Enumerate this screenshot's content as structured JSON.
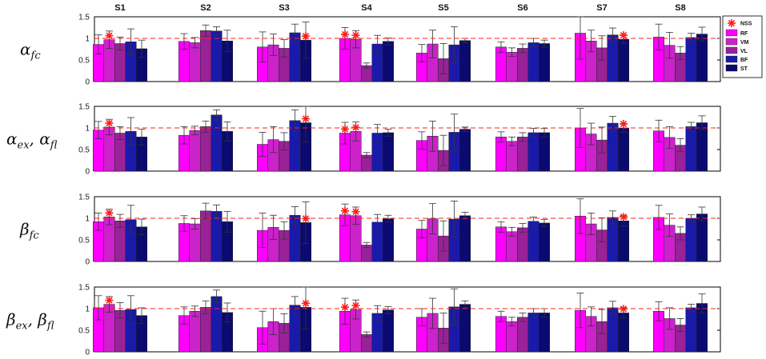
{
  "chart_data": {
    "type": "bar",
    "subjects": [
      "S1",
      "S2",
      "S3",
      "S4",
      "S5",
      "S6",
      "S7",
      "S8"
    ],
    "muscles": [
      "RF",
      "VM",
      "VL",
      "BF",
      "ST"
    ],
    "muscle_colors": [
      "#ff00ff",
      "#cc22cc",
      "#992299",
      "#1a1aaa",
      "#0a0a70"
    ],
    "legend": {
      "marker_label": "NSS",
      "placement": "top-right"
    },
    "reference_line": 1,
    "ylim": [
      0,
      1.5
    ],
    "yticks": [
      "0",
      "0.5",
      "1",
      "1.5"
    ],
    "rows": [
      {
        "label": "α_fc",
        "label_main": "α",
        "label_sub": "fc",
        "values": [
          [
            0.86,
            0.97,
            0.88,
            0.92,
            0.76
          ],
          [
            0.93,
            0.9,
            1.18,
            1.17,
            0.94
          ],
          [
            0.8,
            0.85,
            0.77,
            1.13,
            0.96
          ],
          [
            1.0,
            0.98,
            0.37,
            0.87,
            0.93
          ],
          [
            0.66,
            0.87,
            0.53,
            0.85,
            0.95
          ],
          [
            0.8,
            0.68,
            0.77,
            0.9,
            0.88
          ],
          [
            1.12,
            0.94,
            0.78,
            1.08,
            0.98
          ],
          [
            1.03,
            0.84,
            0.66,
            1.02,
            1.1
          ]
        ],
        "errors": [
          [
            0.22,
            0.2,
            0.15,
            0.3,
            0.2
          ],
          [
            0.18,
            0.12,
            0.13,
            0.1,
            0.25
          ],
          [
            0.35,
            0.25,
            0.2,
            0.2,
            0.42
          ],
          [
            0.25,
            0.2,
            0.06,
            0.2,
            0.08
          ],
          [
            0.2,
            0.32,
            0.35,
            0.42,
            0.05
          ],
          [
            0.12,
            0.1,
            0.1,
            0.1,
            0.08
          ],
          [
            0.6,
            0.25,
            0.28,
            0.16,
            0.1
          ],
          [
            0.3,
            0.3,
            0.15,
            0.1,
            0.16
          ]
        ],
        "significant": [
          [
            false,
            true,
            false,
            false,
            false
          ],
          [
            false,
            false,
            false,
            false,
            false
          ],
          [
            false,
            false,
            false,
            false,
            true
          ],
          [
            true,
            true,
            false,
            false,
            false
          ],
          [
            false,
            false,
            false,
            false,
            false
          ],
          [
            false,
            false,
            false,
            false,
            false
          ],
          [
            false,
            false,
            false,
            false,
            true
          ],
          [
            false,
            false,
            false,
            false,
            false
          ]
        ]
      },
      {
        "label": "α_ex, α_fl",
        "label_main": "α",
        "label_sub": "ex",
        "label_main2": "α",
        "label_sub2": "fl",
        "values": [
          [
            0.95,
            1.02,
            0.88,
            0.92,
            0.79
          ],
          [
            0.83,
            0.94,
            1.03,
            1.3,
            0.92
          ],
          [
            0.62,
            0.73,
            0.69,
            1.17,
            1.12
          ],
          [
            0.88,
            0.92,
            0.37,
            0.88,
            0.89
          ],
          [
            0.71,
            0.81,
            0.48,
            0.9,
            0.97
          ],
          [
            0.79,
            0.69,
            0.79,
            0.89,
            0.89
          ],
          [
            1.0,
            0.86,
            0.72,
            1.11,
            1.0
          ],
          [
            0.93,
            0.78,
            0.6,
            1.03,
            1.12
          ]
        ],
        "errors": [
          [
            0.2,
            0.18,
            0.15,
            0.32,
            0.18
          ],
          [
            0.2,
            0.1,
            0.13,
            0.12,
            0.22
          ],
          [
            0.28,
            0.3,
            0.2,
            0.25,
            0.45
          ],
          [
            0.25,
            0.22,
            0.06,
            0.2,
            0.08
          ],
          [
            0.2,
            0.35,
            0.35,
            0.42,
            0.05
          ],
          [
            0.12,
            0.1,
            0.1,
            0.1,
            0.1
          ],
          [
            0.45,
            0.25,
            0.3,
            0.16,
            0.1
          ],
          [
            0.25,
            0.25,
            0.15,
            0.1,
            0.16
          ]
        ],
        "significant": [
          [
            false,
            true,
            false,
            false,
            false
          ],
          [
            false,
            false,
            false,
            false,
            false
          ],
          [
            false,
            false,
            false,
            false,
            true
          ],
          [
            true,
            true,
            false,
            false,
            false
          ],
          [
            false,
            false,
            false,
            false,
            false
          ],
          [
            false,
            false,
            false,
            false,
            false
          ],
          [
            false,
            false,
            false,
            false,
            true
          ],
          [
            false,
            false,
            false,
            false,
            false
          ]
        ]
      },
      {
        "label": "β_fc",
        "label_main": "β",
        "label_sub": "fc",
        "values": [
          [
            0.92,
            1.03,
            0.94,
            0.97,
            0.8
          ],
          [
            0.88,
            0.87,
            1.17,
            1.16,
            0.92
          ],
          [
            0.72,
            0.79,
            0.72,
            1.07,
            0.9
          ],
          [
            1.08,
            1.06,
            0.38,
            0.91,
            0.99
          ],
          [
            0.75,
            0.99,
            0.59,
            0.98,
            1.06
          ],
          [
            0.8,
            0.69,
            0.78,
            0.93,
            0.89
          ],
          [
            1.05,
            0.87,
            0.73,
            1.02,
            0.94
          ],
          [
            1.02,
            0.84,
            0.65,
            1.0,
            1.1
          ]
        ],
        "errors": [
          [
            0.2,
            0.18,
            0.15,
            0.33,
            0.18
          ],
          [
            0.18,
            0.12,
            0.18,
            0.15,
            0.24
          ],
          [
            0.4,
            0.28,
            0.2,
            0.2,
            0.48
          ],
          [
            0.25,
            0.2,
            0.06,
            0.18,
            0.08
          ],
          [
            0.2,
            0.35,
            0.35,
            0.42,
            0.08
          ],
          [
            0.12,
            0.1,
            0.1,
            0.1,
            0.08
          ],
          [
            0.4,
            0.25,
            0.28,
            0.15,
            0.12
          ],
          [
            0.28,
            0.26,
            0.15,
            0.08,
            0.16
          ]
        ],
        "significant": [
          [
            false,
            true,
            false,
            false,
            false
          ],
          [
            false,
            false,
            false,
            false,
            false
          ],
          [
            false,
            false,
            false,
            false,
            true
          ],
          [
            true,
            true,
            false,
            false,
            false
          ],
          [
            false,
            false,
            false,
            false,
            false
          ],
          [
            false,
            false,
            false,
            false,
            false
          ],
          [
            false,
            false,
            false,
            false,
            true
          ],
          [
            false,
            false,
            false,
            false,
            false
          ]
        ]
      },
      {
        "label": "β_ex, β_fl",
        "label_main": "β",
        "label_sub": "ex",
        "label_main2": "β",
        "label_sub2": "fl",
        "values": [
          [
            1.02,
            1.1,
            0.96,
            0.98,
            0.84
          ],
          [
            0.84,
            0.94,
            1.03,
            1.28,
            0.91
          ],
          [
            0.56,
            0.7,
            0.66,
            1.08,
            1.03
          ],
          [
            0.94,
            0.98,
            0.4,
            0.89,
            0.97
          ],
          [
            0.8,
            0.89,
            0.55,
            1.04,
            1.1
          ],
          [
            0.82,
            0.7,
            0.8,
            0.9,
            0.9
          ],
          [
            0.96,
            0.82,
            0.7,
            1.02,
            0.9
          ],
          [
            0.94,
            0.77,
            0.62,
            1.02,
            1.12
          ]
        ],
        "errors": [
          [
            0.28,
            0.18,
            0.18,
            0.32,
            0.18
          ],
          [
            0.2,
            0.12,
            0.15,
            0.15,
            0.22
          ],
          [
            0.38,
            0.3,
            0.22,
            0.2,
            0.5
          ],
          [
            0.3,
            0.22,
            0.06,
            0.18,
            0.08
          ],
          [
            0.2,
            0.35,
            0.35,
            0.42,
            0.08
          ],
          [
            0.12,
            0.1,
            0.1,
            0.1,
            0.1
          ],
          [
            0.4,
            0.22,
            0.28,
            0.15,
            0.12
          ],
          [
            0.22,
            0.25,
            0.15,
            0.08,
            0.22
          ]
        ],
        "significant": [
          [
            false,
            true,
            false,
            false,
            false
          ],
          [
            false,
            false,
            false,
            false,
            false
          ],
          [
            false,
            false,
            false,
            false,
            true
          ],
          [
            true,
            true,
            false,
            false,
            false
          ],
          [
            false,
            false,
            false,
            false,
            false
          ],
          [
            false,
            false,
            false,
            false,
            false
          ],
          [
            false,
            false,
            false,
            false,
            true
          ],
          [
            false,
            false,
            false,
            false,
            false
          ]
        ]
      }
    ]
  }
}
